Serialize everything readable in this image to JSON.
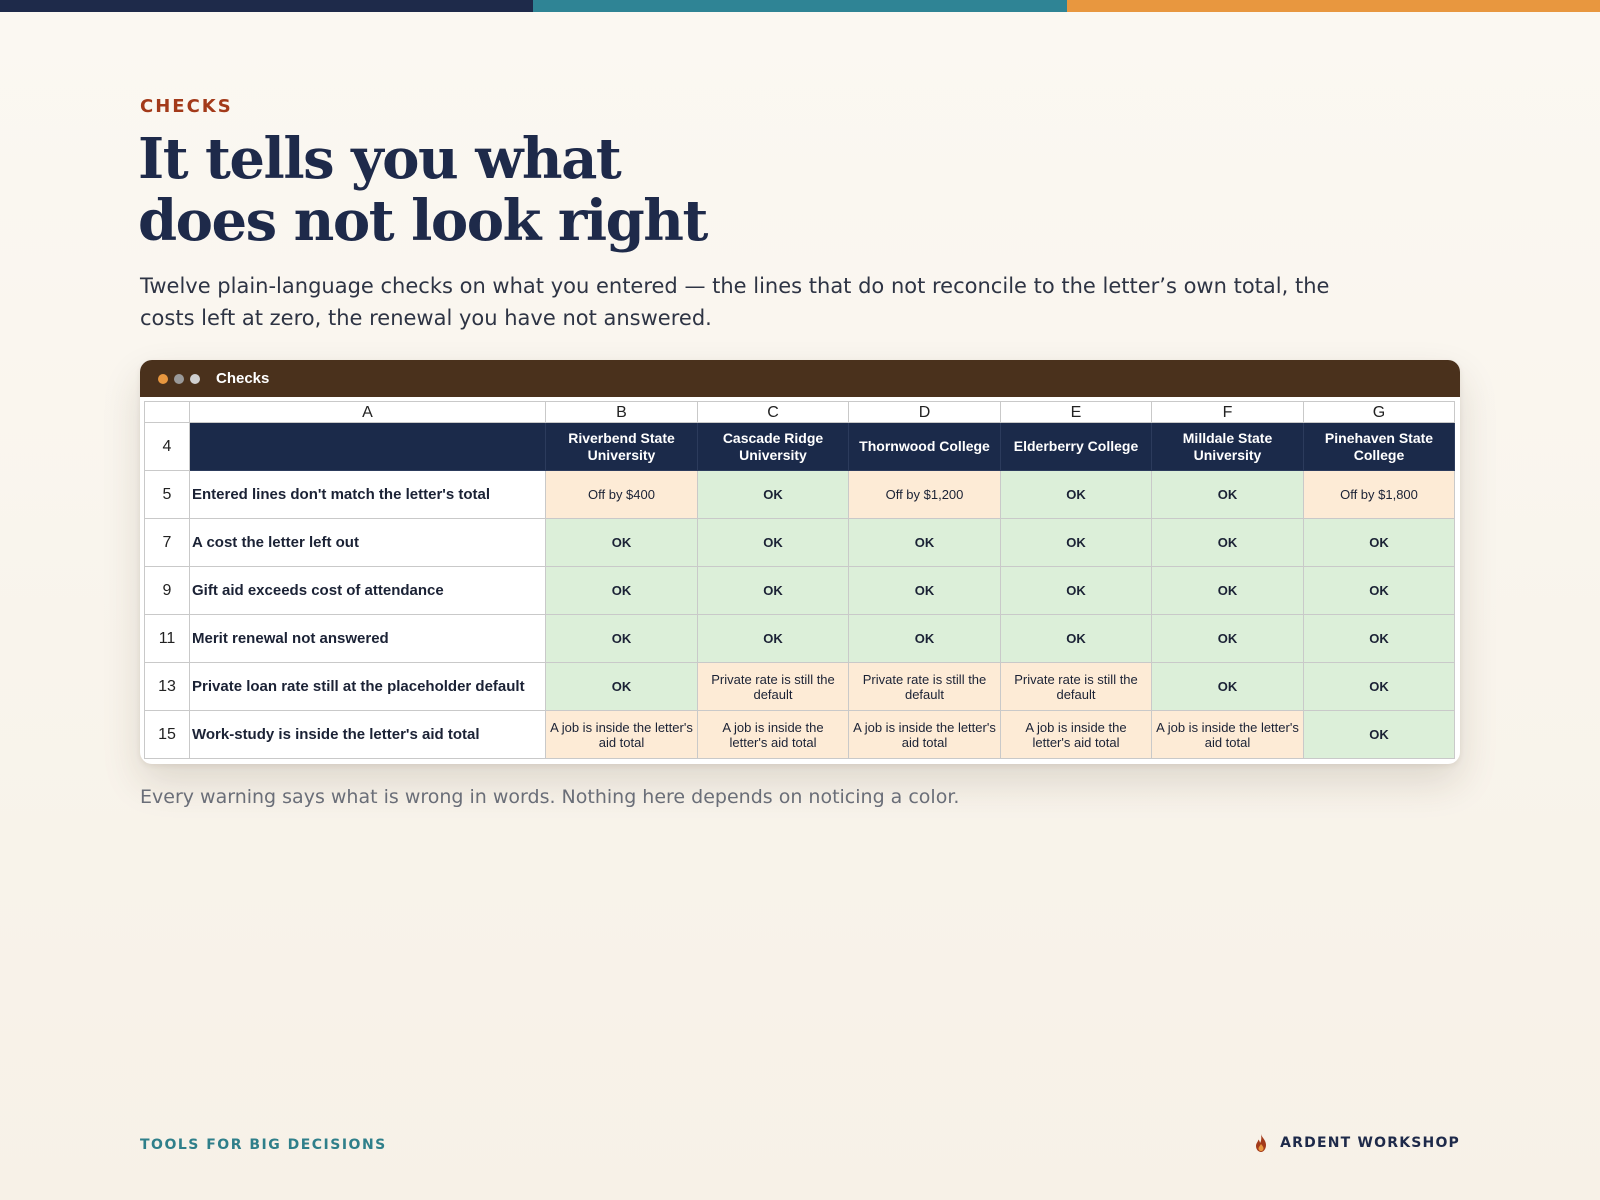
{
  "colors": {
    "top_bar": [
      "#1e2a4a",
      "#2f8495",
      "#e8973f"
    ],
    "eyebrow": "#a33a1a",
    "window_bar": "#4a311c",
    "header_fill": "#1b2a4a",
    "ok_fill": "#dcefd9",
    "warn_fill": "#fdebd6",
    "footer_accent": "#2f7f8a"
  },
  "eyebrow": "CHECKS",
  "headline": {
    "line1": "It tells you what",
    "line2": "does not look right"
  },
  "lede": "Twelve plain-language checks on what you entered — the lines that do not reconcile to the letter’s own total, the costs left at zero, the renewal you have not answered.",
  "window": {
    "title": "Checks",
    "dots": [
      "#e8973f",
      "#9a9a9a",
      "#d0d0d0"
    ]
  },
  "sheet": {
    "column_letters": [
      "A",
      "B",
      "C",
      "D",
      "E",
      "F",
      "G"
    ],
    "header_row_number": "4",
    "schools": [
      "Riverbend State University",
      "Cascade Ridge University",
      "Thornwood College",
      "Elderberry College",
      "Milldale State University",
      "Pinehaven State College"
    ],
    "rows": [
      {
        "row_number": "5",
        "label": "Entered lines don't match the letter's total",
        "cells": [
          {
            "text": "Off by $400",
            "status": "warn"
          },
          {
            "text": "OK",
            "status": "ok"
          },
          {
            "text": "Off by $1,200",
            "status": "warn"
          },
          {
            "text": "OK",
            "status": "ok"
          },
          {
            "text": "OK",
            "status": "ok"
          },
          {
            "text": "Off by $1,800",
            "status": "warn"
          }
        ]
      },
      {
        "row_number": "7",
        "label": "A cost the letter left out",
        "cells": [
          {
            "text": "OK",
            "status": "ok"
          },
          {
            "text": "OK",
            "status": "ok"
          },
          {
            "text": "OK",
            "status": "ok"
          },
          {
            "text": "OK",
            "status": "ok"
          },
          {
            "text": "OK",
            "status": "ok"
          },
          {
            "text": "OK",
            "status": "ok"
          }
        ]
      },
      {
        "row_number": "9",
        "label": "Gift aid exceeds cost of attendance",
        "cells": [
          {
            "text": "OK",
            "status": "ok"
          },
          {
            "text": "OK",
            "status": "ok"
          },
          {
            "text": "OK",
            "status": "ok"
          },
          {
            "text": "OK",
            "status": "ok"
          },
          {
            "text": "OK",
            "status": "ok"
          },
          {
            "text": "OK",
            "status": "ok"
          }
        ]
      },
      {
        "row_number": "11",
        "label": "Merit renewal not answered",
        "cells": [
          {
            "text": "OK",
            "status": "ok"
          },
          {
            "text": "OK",
            "status": "ok"
          },
          {
            "text": "OK",
            "status": "ok"
          },
          {
            "text": "OK",
            "status": "ok"
          },
          {
            "text": "OK",
            "status": "ok"
          },
          {
            "text": "OK",
            "status": "ok"
          }
        ]
      },
      {
        "row_number": "13",
        "label": "Private loan rate still at the placeholder default",
        "cells": [
          {
            "text": "OK",
            "status": "ok"
          },
          {
            "text": "Private rate is still the default",
            "status": "warn"
          },
          {
            "text": "Private rate is still the default",
            "status": "warn"
          },
          {
            "text": "Private rate is still the default",
            "status": "warn"
          },
          {
            "text": "OK",
            "status": "ok"
          },
          {
            "text": "OK",
            "status": "ok"
          }
        ]
      },
      {
        "row_number": "15",
        "label": "Work-study is inside the letter's aid total",
        "cells": [
          {
            "text": "A job is inside the letter's aid total",
            "status": "warn"
          },
          {
            "text": "A job is inside the letter's aid total",
            "status": "warn"
          },
          {
            "text": "A job is inside the letter's aid total",
            "status": "warn"
          },
          {
            "text": "A job is inside the letter's aid total",
            "status": "warn"
          },
          {
            "text": "A job is inside the letter's aid total",
            "status": "warn"
          },
          {
            "text": "OK",
            "status": "ok"
          }
        ]
      }
    ]
  },
  "caption": "Every warning says what is wrong in words. Nothing here depends on noticing a color.",
  "footer": {
    "left": "TOOLS FOR BIG DECISIONS",
    "brand": "ARDENT WORKSHOP",
    "brand_icon": "flame-icon"
  }
}
